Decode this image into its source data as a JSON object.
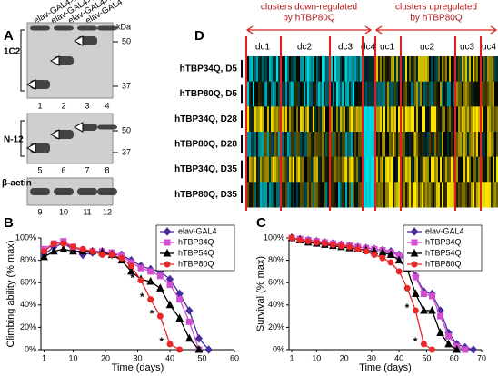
{
  "blots": {
    "panel_label": "A",
    "lane_labels": [
      "elav-GAL4>hTBP34Q",
      "elav-GAL4>hTBP54Q",
      "elav-GAL4>hTBP80Q",
      "elav-GAL4"
    ],
    "unit": "kDa",
    "panels": [
      {
        "antibody": "1C2",
        "markers": [
          "50",
          "37"
        ],
        "lanes": [
          "1",
          "2",
          "3",
          "4"
        ]
      },
      {
        "antibody": "N-12",
        "markers": [
          "50",
          "37"
        ],
        "lanes": [
          "5",
          "6",
          "7",
          "8"
        ]
      },
      {
        "antibody": "β-actin",
        "markers": [],
        "lanes": [
          "9",
          "10",
          "11",
          "12"
        ]
      }
    ]
  },
  "heatmap": {
    "panel_label": "D",
    "groups": [
      {
        "lines": [
          "clusters down-regulated",
          "by hTBP80Q"
        ]
      },
      {
        "lines": [
          "clusters upregulated",
          "by hTBP80Q"
        ]
      }
    ],
    "clusters": [
      "dc1",
      "dc2",
      "dc3",
      "dc4",
      "uc1",
      "uc2",
      "uc3",
      "uc4"
    ],
    "rows": [
      "hTBP34Q, D5",
      "hTBP80Q, D5",
      "hTBP34Q, D28",
      "hTBP80Q, D28",
      "hTBP34Q, D35",
      "hTBP80Q, D35"
    ]
  },
  "chart_data": [
    {
      "type": "line",
      "panel_label": "B",
      "y_label": "Climbing ability (% max)",
      "x_label": "Time (days)",
      "x": [
        1,
        4,
        7,
        10,
        13,
        16,
        19,
        22,
        25,
        28,
        31,
        34,
        37,
        40,
        43,
        46,
        49,
        52
      ],
      "xlim": [
        0,
        60
      ],
      "xticks": [
        1,
        10,
        20,
        30,
        40,
        50,
        60
      ],
      "ylim": [
        0,
        100
      ],
      "yticks": [
        {
          "value": 0,
          "label": "0%"
        },
        {
          "value": 20,
          "label": "20%"
        },
        {
          "value": 40,
          "label": "40%"
        },
        {
          "value": 60,
          "label": "60%"
        },
        {
          "value": 80,
          "label": "80%"
        },
        {
          "value": 100,
          "label": "100%"
        }
      ],
      "series": [
        {
          "name": "elav-GAL4",
          "color": "#4a2d9b",
          "marker": "diamond",
          "values": [
            85,
            92,
            95,
            90,
            85,
            87,
            88,
            85,
            85,
            80,
            75,
            72,
            70,
            63,
            50,
            35,
            10,
            0
          ]
        },
        {
          "name": "hTBP34Q",
          "color": "#d04fd0",
          "marker": "square",
          "values": [
            90,
            95,
            97,
            92,
            88,
            88,
            88,
            87,
            84,
            78,
            73,
            70,
            66,
            58,
            45,
            25,
            0,
            null
          ]
        },
        {
          "name": "hTBP54Q",
          "color": "#000000",
          "marker": "triangle",
          "values": [
            83,
            88,
            90,
            88,
            88,
            88,
            87,
            85,
            80,
            70,
            63,
            61,
            55,
            40,
            28,
            10,
            0,
            null
          ]
        },
        {
          "name": "hTBP80Q",
          "color": "#e8282a",
          "marker": "circle",
          "values": [
            88,
            95,
            95,
            92,
            90,
            88,
            85,
            85,
            82,
            75,
            62,
            45,
            30,
            5,
            0,
            null,
            null,
            null
          ]
        }
      ],
      "annotations": [
        {
          "text": "*",
          "x": 31,
          "y": 62
        },
        {
          "text": "*",
          "x": 34,
          "y": 45
        },
        {
          "text": "*",
          "x": 37,
          "y": 30
        },
        {
          "text": "*",
          "x": 40,
          "y": 5
        }
      ]
    },
    {
      "type": "line",
      "panel_label": "C",
      "y_label": "Survival (% max)",
      "x_label": "Time (days)",
      "x": [
        1,
        4,
        7,
        10,
        13,
        16,
        19,
        22,
        25,
        28,
        31,
        34,
        37,
        40,
        43,
        46,
        49,
        52,
        55,
        58,
        61,
        64,
        67
      ],
      "xlim": [
        0,
        70
      ],
      "xticks": [
        1,
        10,
        20,
        30,
        40,
        50,
        60,
        70
      ],
      "ylim": [
        0,
        100
      ],
      "yticks": [
        {
          "value": 0,
          "label": "0%"
        },
        {
          "value": 20,
          "label": "20%"
        },
        {
          "value": 40,
          "label": "40%"
        },
        {
          "value": 60,
          "label": "60%"
        },
        {
          "value": 80,
          "label": "80%"
        },
        {
          "value": 100,
          "label": "100%"
        }
      ],
      "series": [
        {
          "name": "elav-GAL4",
          "color": "#4a2d9b",
          "marker": "diamond",
          "values": [
            100,
            99,
            98,
            97,
            96,
            95,
            94,
            93,
            92,
            91,
            90,
            89,
            88,
            85,
            80,
            66,
            52,
            50,
            35,
            15,
            5,
            2,
            0
          ]
        },
        {
          "name": "hTBP34Q",
          "color": "#d04fd0",
          "marker": "square",
          "values": [
            100,
            99,
            98,
            97,
            96,
            95,
            94,
            93,
            92,
            91,
            90,
            89,
            87,
            84,
            78,
            65,
            50,
            48,
            30,
            12,
            3,
            0,
            null
          ]
        },
        {
          "name": "hTBP54Q",
          "color": "#000000",
          "marker": "triangle",
          "values": [
            100,
            98,
            96,
            95,
            94,
            93,
            92,
            91,
            90,
            89,
            88,
            87,
            85,
            80,
            72,
            50,
            35,
            35,
            15,
            5,
            0,
            null,
            null
          ]
        },
        {
          "name": "hTBP80Q",
          "color": "#e8282a",
          "marker": "circle",
          "values": [
            100,
            98,
            97,
            96,
            95,
            94,
            93,
            92,
            90,
            88,
            85,
            82,
            78,
            70,
            55,
            35,
            5,
            0,
            null,
            null,
            null,
            null,
            null
          ]
        }
      ],
      "annotations": [
        {
          "text": "*",
          "x": 46,
          "y": 35
        },
        {
          "text": "*",
          "x": 49,
          "y": 5
        }
      ]
    }
  ]
}
